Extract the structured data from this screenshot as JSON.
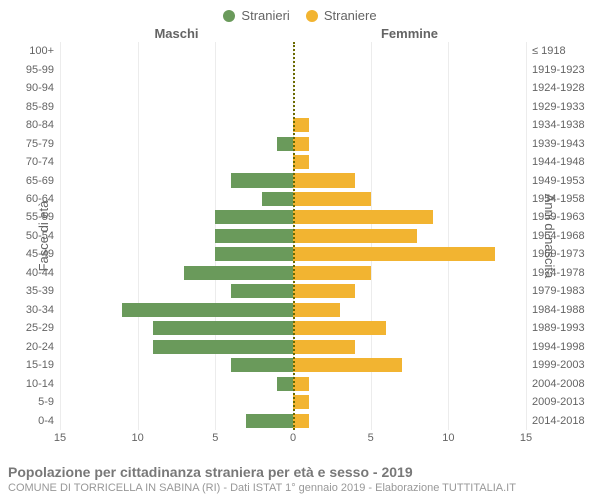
{
  "legend": {
    "male": {
      "label": "Stranieri",
      "color": "#6a9a5b"
    },
    "female": {
      "label": "Straniere",
      "color": "#f2b431"
    }
  },
  "column_titles": {
    "male": "Maschi",
    "female": "Femmine"
  },
  "axis_titles": {
    "left": "Fasce di età",
    "right": "Anni di nascita"
  },
  "x_axis": {
    "min": -15,
    "max": 15,
    "ticks": [
      15,
      10,
      5,
      0,
      5,
      10,
      15
    ],
    "tick_positions_pct": [
      0,
      16.666,
      33.333,
      50,
      66.666,
      83.333,
      100
    ]
  },
  "grid_color": "#ececec",
  "center_line_color": "#6b6b00",
  "background_color": "#ffffff",
  "label_fontsize": 11,
  "rows": [
    {
      "age": "100+",
      "year": "≤ 1918",
      "m": 0,
      "f": 0
    },
    {
      "age": "95-99",
      "year": "1919-1923",
      "m": 0,
      "f": 0
    },
    {
      "age": "90-94",
      "year": "1924-1928",
      "m": 0,
      "f": 0
    },
    {
      "age": "85-89",
      "year": "1929-1933",
      "m": 0,
      "f": 0
    },
    {
      "age": "80-84",
      "year": "1934-1938",
      "m": 0,
      "f": 1
    },
    {
      "age": "75-79",
      "year": "1939-1943",
      "m": 1,
      "f": 1
    },
    {
      "age": "70-74",
      "year": "1944-1948",
      "m": 0,
      "f": 1
    },
    {
      "age": "65-69",
      "year": "1949-1953",
      "m": 4,
      "f": 4
    },
    {
      "age": "60-64",
      "year": "1954-1958",
      "m": 2,
      "f": 5
    },
    {
      "age": "55-59",
      "year": "1959-1963",
      "m": 5,
      "f": 9
    },
    {
      "age": "50-54",
      "year": "1964-1968",
      "m": 5,
      "f": 8
    },
    {
      "age": "45-49",
      "year": "1969-1973",
      "m": 5,
      "f": 13
    },
    {
      "age": "40-44",
      "year": "1974-1978",
      "m": 7,
      "f": 5
    },
    {
      "age": "35-39",
      "year": "1979-1983",
      "m": 4,
      "f": 4
    },
    {
      "age": "30-34",
      "year": "1984-1988",
      "m": 11,
      "f": 3
    },
    {
      "age": "25-29",
      "year": "1989-1993",
      "m": 9,
      "f": 6
    },
    {
      "age": "20-24",
      "year": "1994-1998",
      "m": 9,
      "f": 4
    },
    {
      "age": "15-19",
      "year": "1999-2003",
      "m": 4,
      "f": 7
    },
    {
      "age": "10-14",
      "year": "2004-2008",
      "m": 1,
      "f": 1
    },
    {
      "age": "5-9",
      "year": "2009-2013",
      "m": 0,
      "f": 1
    },
    {
      "age": "0-4",
      "year": "2014-2018",
      "m": 3,
      "f": 1
    }
  ],
  "footer": {
    "title": "Popolazione per cittadinanza straniera per età e sesso - 2019",
    "subtitle": "COMUNE DI TORRICELLA IN SABINA (RI) - Dati ISTAT 1° gennaio 2019 - Elaborazione TUTTITALIA.IT"
  }
}
